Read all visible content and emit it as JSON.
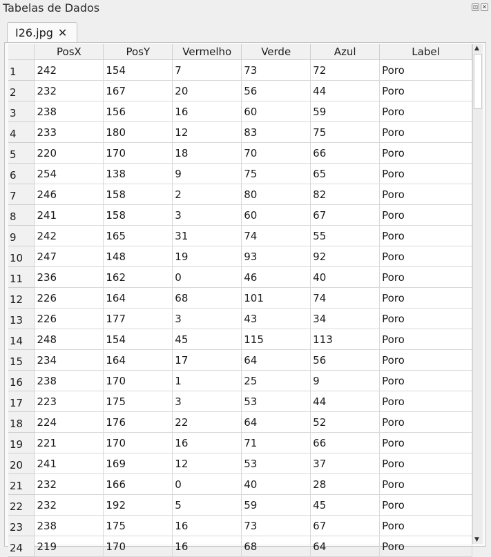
{
  "panel": {
    "title": "Tabelas de Dados",
    "float_icon": "float-icon",
    "close_icon": "close-icon",
    "float_glyph": "⊡",
    "close_glyph": "✕"
  },
  "tab": {
    "label": "I26.jpg",
    "close_glyph": "✕"
  },
  "scrollbar": {
    "up_glyph": "▲",
    "down_glyph": "▼"
  },
  "table": {
    "columns": [
      "PosX",
      "PosY",
      "Vermelho",
      "Verde",
      "Azul",
      "Label"
    ],
    "rows": [
      {
        "n": "1",
        "c": [
          "242",
          "154",
          "7",
          "73",
          "72",
          "Poro"
        ]
      },
      {
        "n": "2",
        "c": [
          "232",
          "167",
          "20",
          "56",
          "44",
          "Poro"
        ]
      },
      {
        "n": "3",
        "c": [
          "238",
          "156",
          "16",
          "60",
          "59",
          "Poro"
        ]
      },
      {
        "n": "4",
        "c": [
          "233",
          "180",
          "12",
          "83",
          "75",
          "Poro"
        ]
      },
      {
        "n": "5",
        "c": [
          "220",
          "170",
          "18",
          "70",
          "66",
          "Poro"
        ]
      },
      {
        "n": "6",
        "c": [
          "254",
          "138",
          "9",
          "75",
          "65",
          "Poro"
        ]
      },
      {
        "n": "7",
        "c": [
          "246",
          "158",
          "2",
          "80",
          "82",
          "Poro"
        ]
      },
      {
        "n": "8",
        "c": [
          "241",
          "158",
          "3",
          "60",
          "67",
          "Poro"
        ]
      },
      {
        "n": "9",
        "c": [
          "242",
          "165",
          "31",
          "74",
          "55",
          "Poro"
        ]
      },
      {
        "n": "10",
        "c": [
          "247",
          "148",
          "19",
          "93",
          "92",
          "Poro"
        ]
      },
      {
        "n": "11",
        "c": [
          "236",
          "162",
          "0",
          "46",
          "40",
          "Poro"
        ]
      },
      {
        "n": "12",
        "c": [
          "226",
          "164",
          "68",
          "101",
          "74",
          "Poro"
        ]
      },
      {
        "n": "13",
        "c": [
          "226",
          "177",
          "3",
          "43",
          "34",
          "Poro"
        ]
      },
      {
        "n": "14",
        "c": [
          "248",
          "154",
          "45",
          "115",
          "113",
          "Poro"
        ]
      },
      {
        "n": "15",
        "c": [
          "234",
          "164",
          "17",
          "64",
          "56",
          "Poro"
        ]
      },
      {
        "n": "16",
        "c": [
          "238",
          "170",
          "1",
          "25",
          "9",
          "Poro"
        ]
      },
      {
        "n": "17",
        "c": [
          "223",
          "175",
          "3",
          "53",
          "44",
          "Poro"
        ]
      },
      {
        "n": "18",
        "c": [
          "224",
          "176",
          "22",
          "64",
          "52",
          "Poro"
        ]
      },
      {
        "n": "19",
        "c": [
          "221",
          "170",
          "16",
          "71",
          "66",
          "Poro"
        ]
      },
      {
        "n": "20",
        "c": [
          "241",
          "169",
          "12",
          "53",
          "37",
          "Poro"
        ]
      },
      {
        "n": "21",
        "c": [
          "232",
          "166",
          "0",
          "40",
          "28",
          "Poro"
        ]
      },
      {
        "n": "22",
        "c": [
          "232",
          "192",
          "5",
          "59",
          "45",
          "Poro"
        ]
      },
      {
        "n": "23",
        "c": [
          "238",
          "175",
          "16",
          "73",
          "67",
          "Poro"
        ]
      },
      {
        "n": "24",
        "c": [
          "219",
          "170",
          "16",
          "68",
          "64",
          "Poro"
        ]
      }
    ]
  }
}
